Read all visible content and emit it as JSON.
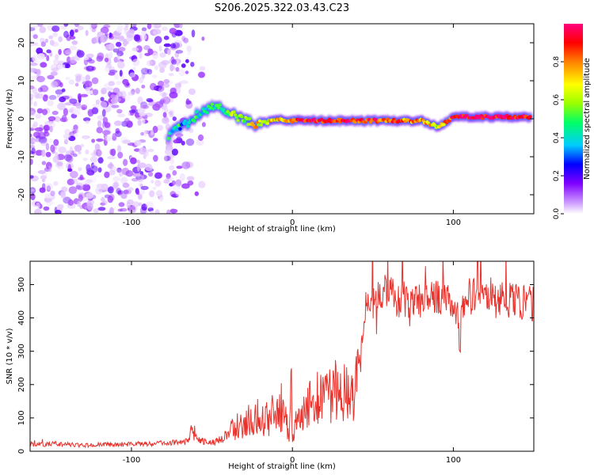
{
  "figure": {
    "title": "S206.2025.322.03.43.C23"
  },
  "chart_data": [
    {
      "type": "heatmap",
      "title": "S206.2025.322.03.43.C23",
      "xlabel": "Height of straight line (km)",
      "ylabel": "Frequency (Hz)",
      "xlim": [
        -163,
        150
      ],
      "ylim": [
        -25,
        25
      ],
      "xticks": [
        -100,
        0,
        100
      ],
      "xtick_labels": [
        "-100",
        "0",
        "100"
      ],
      "yticks": [
        -20,
        -10,
        0,
        10,
        20
      ],
      "ytick_labels": [
        "-20",
        "-10",
        "0",
        "10",
        "20"
      ],
      "colorbar": {
        "label": "Normalized spectral amplitude",
        "range": [
          0,
          1
        ],
        "ticks": [
          0.0,
          0.2,
          0.4,
          0.6,
          0.8
        ],
        "tick_labels": [
          "0.0",
          "0.2",
          "0.4",
          "0.6",
          "0.8"
        ],
        "colors": [
          "#ffffff",
          "#cc99ff",
          "#8000ff",
          "#0000ff",
          "#00ccff",
          "#00ff66",
          "#99ff00",
          "#ffff00",
          "#ff8000",
          "#ff0000",
          "#ff0080"
        ]
      },
      "noise_region_x": [
        -163,
        -53
      ],
      "trace": {
        "x": [
          -77,
          -72,
          -67,
          -62,
          -57,
          -52,
          -47,
          -42,
          -37,
          -32,
          -27,
          -22,
          -17,
          -12,
          -7,
          -2,
          5,
          20,
          40,
          60,
          80,
          86,
          90,
          94,
          98,
          100,
          105,
          120,
          140,
          148
        ],
        "freq": [
          -4.5,
          -3,
          -1.5,
          0,
          1.5,
          2.5,
          3,
          2,
          1,
          0,
          -1,
          -1.5,
          -1,
          -0.5,
          0,
          -0.5,
          -0.5,
          -0.5,
          -0.5,
          -0.5,
          -0.5,
          -1.5,
          -2,
          -1.5,
          0,
          0.5,
          0.5,
          0.5,
          0.5,
          0.5
        ],
        "amplitude": [
          0.45,
          0.45,
          0.4,
          0.45,
          0.45,
          0.5,
          0.5,
          0.55,
          0.6,
          0.6,
          0.65,
          0.7,
          0.7,
          0.75,
          0.75,
          0.85,
          0.9,
          0.9,
          0.9,
          0.85,
          0.8,
          0.7,
          0.65,
          0.75,
          0.85,
          0.95,
          0.95,
          0.95,
          0.95,
          0.95
        ]
      }
    },
    {
      "type": "line",
      "xlabel": "Height of straight line (km)",
      "ylabel": "SNR (10 * v/v)",
      "xlim": [
        -163,
        150
      ],
      "ylim": [
        0,
        570
      ],
      "xticks": [
        -100,
        0,
        100
      ],
      "xtick_labels": [
        "-100",
        "0",
        "100"
      ],
      "yticks": [
        0,
        100,
        200,
        300,
        400,
        500
      ],
      "ytick_labels": [
        "0",
        "100",
        "200",
        "300",
        "400",
        "500"
      ],
      "series": [
        {
          "name": "SNR",
          "color": "#e8332d",
          "x": [
            -163,
            -150,
            -130,
            -110,
            -90,
            -75,
            -65,
            -62,
            -58,
            -55,
            -50,
            -45,
            -40,
            -35,
            -30,
            -25,
            -20,
            -15,
            -10,
            -5,
            -2,
            -1,
            0,
            5,
            10,
            15,
            20,
            25,
            30,
            35,
            40,
            41,
            42,
            43,
            44,
            45,
            46,
            50,
            60,
            70,
            80,
            90,
            100,
            103,
            104,
            105,
            110,
            120,
            130,
            140,
            150
          ],
          "y": [
            20,
            22,
            18,
            20,
            22,
            25,
            30,
            80,
            35,
            30,
            25,
            35,
            55,
            75,
            85,
            110,
            100,
            95,
            110,
            120,
            40,
            230,
            60,
            100,
            130,
            150,
            160,
            175,
            185,
            190,
            200,
            210,
            220,
            330,
            360,
            410,
            460,
            450,
            470,
            455,
            450,
            460,
            455,
            400,
            270,
            430,
            460,
            465,
            455,
            450,
            440
          ]
        }
      ]
    }
  ]
}
